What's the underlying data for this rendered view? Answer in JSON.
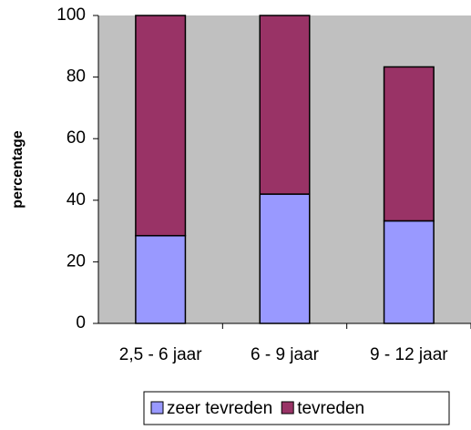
{
  "chart_data": {
    "type": "stacked_bar",
    "y_label": "percentage",
    "categories": [
      "2,5 - 6 jaar",
      "6 - 9 jaar",
      "9 - 12 jaar"
    ],
    "series": [
      {
        "name": "zeer tevreden",
        "color": "#9999ff",
        "values": [
          28.5,
          42,
          33.3
        ]
      },
      {
        "name": "tevreden",
        "color": "#993366",
        "values": [
          71.5,
          58,
          50
        ]
      }
    ],
    "ylim": [
      0,
      100
    ],
    "yticks": [
      0,
      20,
      40,
      60,
      80,
      100
    ],
    "grid": false,
    "legend": "bottom"
  }
}
